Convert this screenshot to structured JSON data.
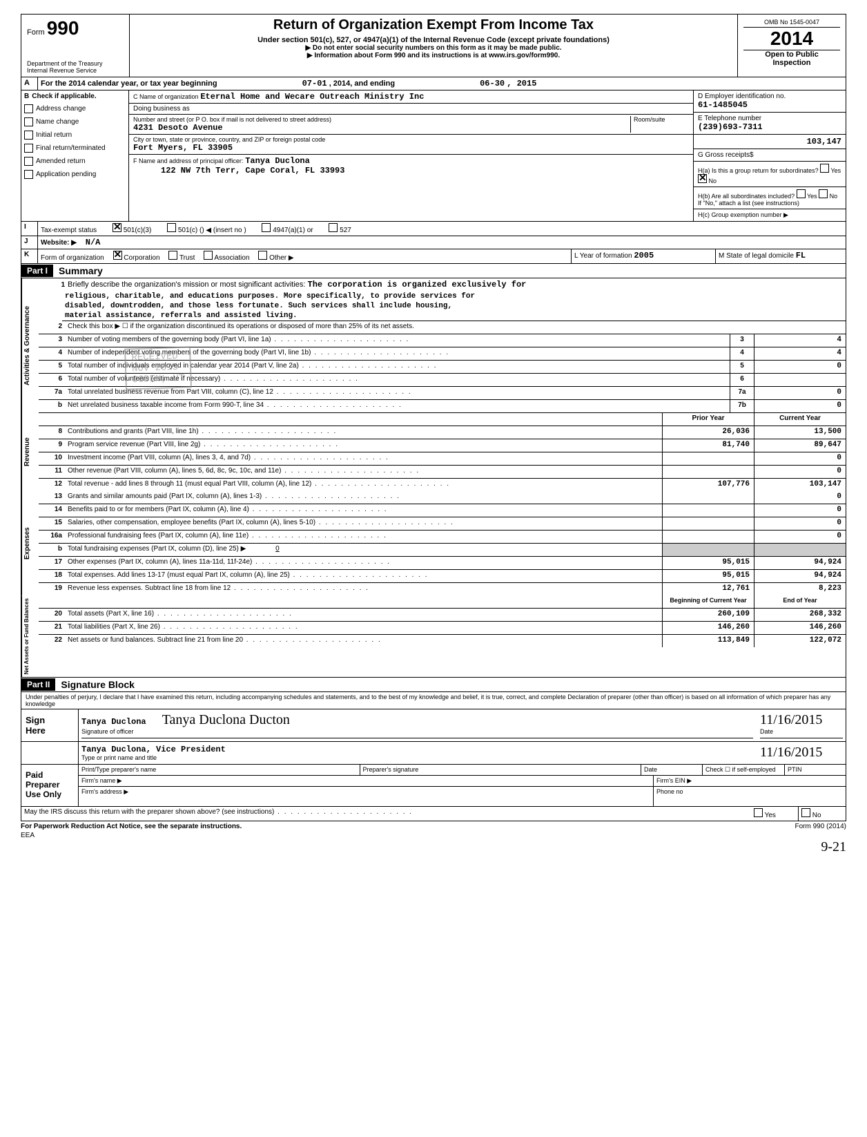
{
  "header": {
    "form_label": "Form",
    "form_number": "990",
    "title": "Return of Organization Exempt From Income Tax",
    "subtitle": "Under section 501(c), 527, or 4947(a)(1) of the Internal Revenue Code (except private foundations)",
    "instruction1": "▶ Do not enter social security numbers on this form as it may be made public.",
    "instruction2": "▶ Information about Form 990 and its instructions is at www.irs.gov/form990.",
    "dept1": "Department of the Treasury",
    "dept2": "Internal Revenue Service",
    "omb": "OMB No  1545-0047",
    "year": "2014",
    "open_public1": "Open to Public",
    "open_public2": "Inspection"
  },
  "row_a": {
    "label": "A",
    "text": "For the 2014 calendar year, or tax year beginning",
    "begin": "07-01",
    "mid": ", 2014, and ending",
    "end_month": "06-30",
    "end_year": ", 2015"
  },
  "section_b": {
    "label_b": "B",
    "check_label": "Check if applicable.",
    "checks": [
      "Address change",
      "Name change",
      "Initial return",
      "Final return/terminated",
      "Amended return",
      "Application pending"
    ],
    "c_label": "C  Name of organization",
    "c_value": "Eternal Home and Wecare Outreach Ministry Inc",
    "doing_business": "Doing business as",
    "street_label": "Number and street (or P O. box if mail is not delivered to street address)",
    "room_label": "Room/suite",
    "street_value": "4231 Desoto Avenue",
    "city_label": "City or town, state or province, country, and ZIP or foreign postal code",
    "city_value": "Fort Myers, FL 33905",
    "f_label": "F  Name and address of principal officer:",
    "f_name": "Tanya Duclona",
    "f_addr": "122 NW 7th Terr, Cape Coral, FL 33993",
    "d_label": "D  Employer identification no.",
    "d_value": "61-1485045",
    "e_label": "E  Telephone number",
    "e_value": "(239)693-7311",
    "gross_receipts_amt": "103,147",
    "g_label": "G  Gross receipts$",
    "ha_label": "H(a)  Is this a group return for subordinates?",
    "hb_label": "H(b)  Are all subordinates included?",
    "hb_note": "If \"No,\" attach a list (see instructions)",
    "hc_label": "H(c)  Group exemption number  ▶",
    "yes": "Yes",
    "no": "No"
  },
  "row_i": {
    "label": "I",
    "text": "Tax-exempt status",
    "opt1": "501(c)(3)",
    "opt2": "501(c) (",
    "opt2b": ")  ◀  (insert no )",
    "opt3": "4947(a)(1) or",
    "opt4": "527"
  },
  "row_j": {
    "label": "J",
    "text": "Website: ▶",
    "value": "N/A"
  },
  "row_k": {
    "label": "K",
    "text": "Form of organization",
    "opts": [
      "Corporation",
      "Trust",
      "Association",
      "Other ▶"
    ],
    "l_label": "L  Year of formation",
    "l_value": "2005",
    "m_label": "M  State of legal domicile",
    "m_value": "FL"
  },
  "part1": {
    "label": "Part I",
    "title": "Summary"
  },
  "governance": {
    "vlabel": "Activities & Governance",
    "line1_label": "Briefly describe the organization's mission or most significant activities:",
    "mission": [
      "The corporation is organized exclusively for",
      "religious, charitable, and educations purposes.  More specifically, to provide services for",
      "disabled, downtrodden, and those less fortunate.  Such services shall include housing,",
      "material assistance, referrals and assisted living."
    ],
    "line2": "Check this box ▶ ☐ if the organization discontinued its operations or disposed of more than 25% of its net assets.",
    "line3": "Number of voting members of the governing body (Part VI, line 1a)",
    "line4": "Number of independent voting members of the governing body (Part VI, line 1b)",
    "line5": "Total number of individuals employed in calendar year 2014 (Part V, line 2a)",
    "line6": "Total number of volunteers (estimate if necessary)",
    "line7a": "Total unrelated business revenue from Part VIII, column (C), line 12",
    "line7b": "Net unrelated business taxable income from Form 990-T, line 34",
    "v3": "4",
    "v4": "4",
    "v5": "0",
    "v6": "",
    "v7a": "0",
    "v7b": "0"
  },
  "revenue": {
    "vlabel": "Revenue",
    "prior_label": "Prior Year",
    "current_label": "Current Year",
    "lines": [
      {
        "n": "8",
        "t": "Contributions and grants (Part VIII, line 1h)",
        "p": "26,036",
        "c": "13,500"
      },
      {
        "n": "9",
        "t": "Program service revenue (Part VIII, line 2g)",
        "p": "81,740",
        "c": "89,647"
      },
      {
        "n": "10",
        "t": "Investment income (Part VIII, column (A), lines 3, 4, and 7d)",
        "p": "",
        "c": "0"
      },
      {
        "n": "11",
        "t": "Other revenue (Part VIII, column (A), lines 5, 6d, 8c, 9c, 10c, and 11e)",
        "p": "",
        "c": "0"
      },
      {
        "n": "12",
        "t": "Total revenue - add lines 8 through 11 (must equal Part VIII, column (A), line 12)",
        "p": "107,776",
        "c": "103,147"
      }
    ]
  },
  "expenses": {
    "vlabel": "Expenses",
    "lines": [
      {
        "n": "13",
        "t": "Grants and similar amounts paid (Part IX, column (A), lines 1-3)",
        "p": "",
        "c": "0"
      },
      {
        "n": "14",
        "t": "Benefits paid to or for members (Part IX, column (A), line 4)",
        "p": "",
        "c": "0"
      },
      {
        "n": "15",
        "t": "Salaries, other compensation, employee benefits (Part IX, column (A), lines 5-10)",
        "p": "",
        "c": "0"
      },
      {
        "n": "16a",
        "t": "Professional fundraising fees (Part IX, column (A), line 11e)",
        "p": "",
        "c": "0"
      },
      {
        "n": "b",
        "t": "Total fundraising expenses (Part IX, column (D), line 25)     ▶",
        "p": "0",
        "c": "",
        "special": true
      },
      {
        "n": "17",
        "t": "Other expenses (Part IX, column (A), lines 11a-11d, 11f-24e)",
        "p": "95,015",
        "c": "94,924"
      },
      {
        "n": "18",
        "t": "Total expenses.  Add lines 13-17 (must equal Part IX, column (A), line 25)",
        "p": "95,015",
        "c": "94,924"
      },
      {
        "n": "19",
        "t": "Revenue less expenses.  Subtract line 18 from line 12",
        "p": "12,761",
        "c": "8,223"
      }
    ]
  },
  "netassets": {
    "vlabel": "Net Assets or Fund Balances",
    "begin_label": "Beginning of Current Year",
    "end_label": "End of Year",
    "lines": [
      {
        "n": "20",
        "t": "Total assets (Part X, line 16)",
        "p": "260,109",
        "c": "268,332"
      },
      {
        "n": "21",
        "t": "Total liabilities (Part X, line 26)",
        "p": "146,260",
        "c": "146,260"
      },
      {
        "n": "22",
        "t": "Net assets or fund balances.  Subtract line 21 from line 20",
        "p": "113,849",
        "c": "122,072"
      }
    ]
  },
  "part2": {
    "label": "Part II",
    "title": "Signature Block",
    "declaration": "Under penalties of perjury, I declare that I have examined this return, including accompanying schedules and statements, and to the best of my knowledge and belief, it is true, correct, and complete  Declaration of preparer (other than officer) is based on all information of which preparer has any knowledge"
  },
  "sign": {
    "sign_label": "Sign",
    "here_label": "Here",
    "sig_name": "Tanya Duclona",
    "sig_of_officer": "Signature of officer",
    "typed_name": "Tanya Duclona, Vice President",
    "type_label": "Type or print name and title",
    "date_label": "Date",
    "date1": "11/16/2015",
    "date2": "11/16/2015",
    "handwritten_sig": "Tanya Duclona Ducton"
  },
  "preparer": {
    "paid_label": "Paid",
    "preparer_label": "Preparer",
    "use_only_label": "Use Only",
    "print_name_label": "Print/Type preparer's name",
    "sig_label": "Preparer's signature",
    "date_label": "Date",
    "check_label": "Check ☐ if self-employed",
    "ptin_label": "PTIN",
    "firm_name_label": "Firm's name  ▶",
    "firm_ein_label": "Firm's EIN  ▶",
    "firm_addr_label": "Firm's address ▶",
    "phone_label": "Phone no"
  },
  "footer": {
    "discuss": "May the IRS discuss this return with the preparer shown above? (see instructions)",
    "paperwork": "For Paperwork Reduction Act Notice, see the separate instructions.",
    "eea": "EEA",
    "form_ref": "Form 990 (2014)",
    "handwritten": "9-21"
  },
  "stamp": {
    "line1": "RECEIVED",
    "line2": "NOV 2015",
    "line3": "OGDEN, UT"
  }
}
